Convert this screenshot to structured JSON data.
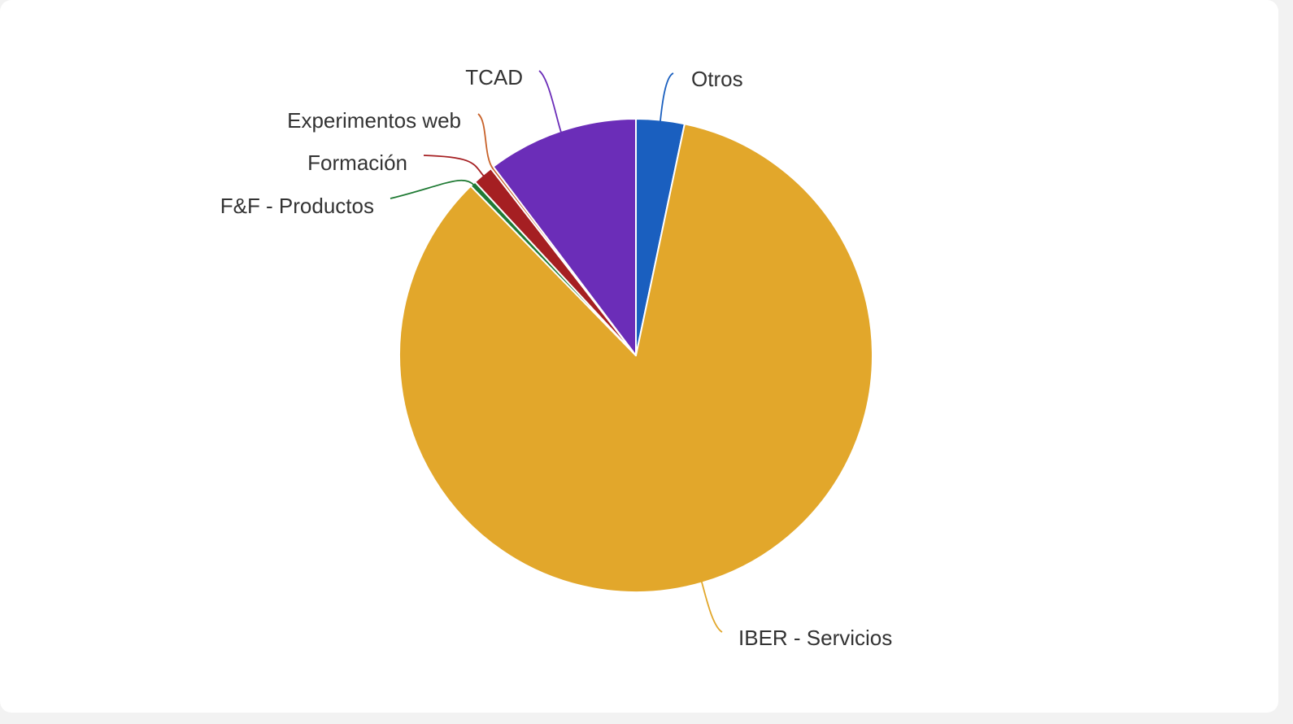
{
  "chart_data": {
    "type": "pie",
    "title": "",
    "start_angle_deg": 0,
    "direction": "clockwise",
    "slices": [
      {
        "label": "Otros",
        "value": 3.3,
        "color": "#1a5fbf"
      },
      {
        "label": "IBER - Servicios",
        "value": 84.4,
        "color": "#e2a72b"
      },
      {
        "label": "F&F - Productos",
        "value": 0.4,
        "color": "#1f7a34"
      },
      {
        "label": "Formación",
        "value": 1.4,
        "color": "#a51f22"
      },
      {
        "label": "Experimentos web",
        "value": 0.2,
        "color": "#c8622a"
      },
      {
        "label": "TCAD",
        "value": 10.3,
        "color": "#6b2db8"
      }
    ]
  }
}
